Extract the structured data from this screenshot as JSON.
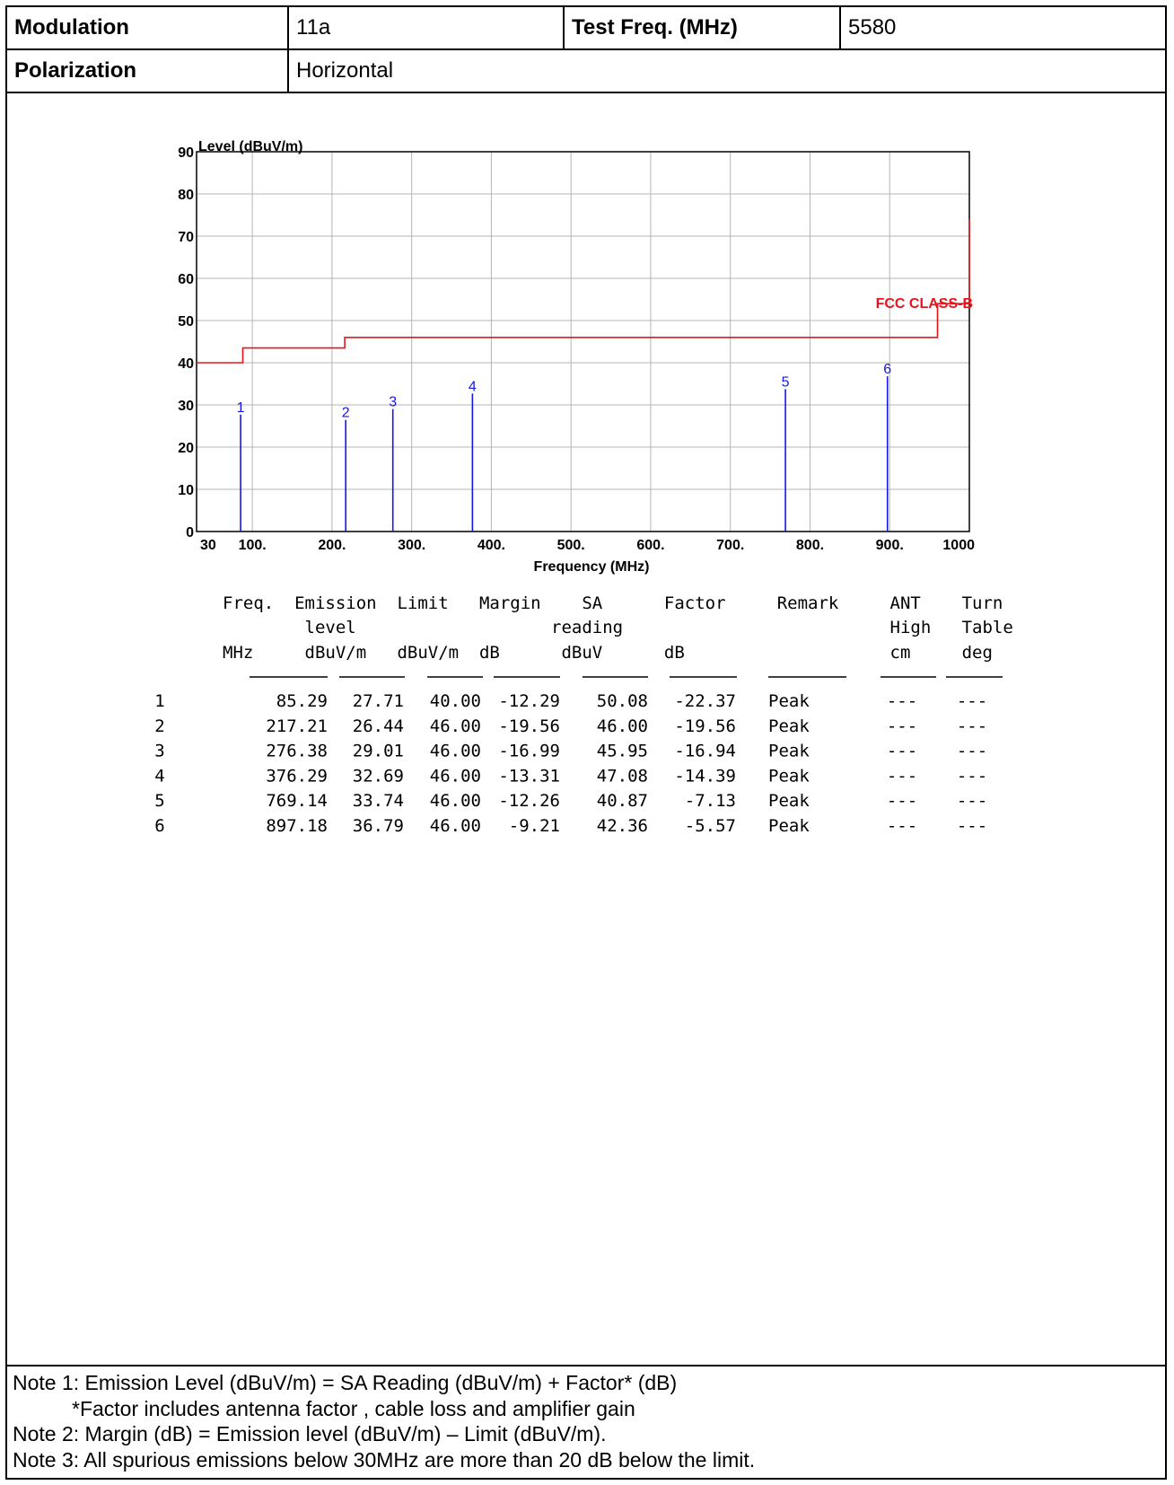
{
  "header": {
    "modulation_label": "Modulation",
    "modulation_value": "11a",
    "test_freq_label": "Test Freq. (MHz)",
    "test_freq_value": "5580",
    "polarization_label": "Polarization",
    "polarization_value": "Horizontal"
  },
  "chart_data": {
    "type": "line",
    "ylabel": "Level (dBuV/m)",
    "xlabel": "Frequency (MHz)",
    "xlim": [
      30,
      1000
    ],
    "ylim": [
      0,
      90
    ],
    "x_ticks": [
      {
        "value": 30,
        "label": "30"
      },
      {
        "value": 100,
        "label": "100."
      },
      {
        "value": 200,
        "label": "200."
      },
      {
        "value": 300,
        "label": "300."
      },
      {
        "value": 400,
        "label": "400."
      },
      {
        "value": 500,
        "label": "500."
      },
      {
        "value": 600,
        "label": "600."
      },
      {
        "value": 700,
        "label": "700."
      },
      {
        "value": 800,
        "label": "800."
      },
      {
        "value": 900,
        "label": "900."
      },
      {
        "value": 1000,
        "label": "1000"
      }
    ],
    "y_ticks": [
      0,
      10,
      20,
      30,
      40,
      50,
      60,
      70,
      80,
      90
    ],
    "grid": true,
    "limit_line": {
      "name": "FCC CLASS-B",
      "color": "#e8141c",
      "points": [
        [
          30,
          40
        ],
        [
          88,
          40
        ],
        [
          88,
          43.5
        ],
        [
          216,
          43.5
        ],
        [
          216,
          46
        ],
        [
          960,
          46
        ],
        [
          960,
          54
        ],
        [
          1000,
          54
        ],
        [
          1000,
          74
        ]
      ]
    },
    "markers": {
      "color": "#1515f0",
      "points": [
        {
          "label": "1",
          "x": 85.29,
          "y": 27.71
        },
        {
          "label": "2",
          "x": 217.21,
          "y": 26.44
        },
        {
          "label": "3",
          "x": 276.38,
          "y": 29.01
        },
        {
          "label": "4",
          "x": 376.29,
          "y": 32.69
        },
        {
          "label": "5",
          "x": 769.14,
          "y": 33.74
        },
        {
          "label": "6",
          "x": 897.18,
          "y": 36.79
        }
      ]
    }
  },
  "results": {
    "header_line1": "Freq.  Emission  Limit   Margin    SA      Factor     Remark     ANT    Turn",
    "header_line2": "        level                   reading                          High   Table",
    "header_line3": "MHz     dBuV/m   dBuV/m  dB      dBuV      dB                    cm     deg",
    "rows": [
      {
        "no": "1",
        "freq": "85.29",
        "level": "27.71",
        "limit": "40.00",
        "margin": "-12.29",
        "reading": "50.08",
        "factor": "-22.37",
        "remark": "Peak",
        "ant": "---",
        "turn": "---"
      },
      {
        "no": "2",
        "freq": "217.21",
        "level": "26.44",
        "limit": "46.00",
        "margin": "-19.56",
        "reading": "46.00",
        "factor": "-19.56",
        "remark": "Peak",
        "ant": "---",
        "turn": "---"
      },
      {
        "no": "3",
        "freq": "276.38",
        "level": "29.01",
        "limit": "46.00",
        "margin": "-16.99",
        "reading": "45.95",
        "factor": "-16.94",
        "remark": "Peak",
        "ant": "---",
        "turn": "---"
      },
      {
        "no": "4",
        "freq": "376.29",
        "level": "32.69",
        "limit": "46.00",
        "margin": "-13.31",
        "reading": "47.08",
        "factor": "-14.39",
        "remark": "Peak",
        "ant": "---",
        "turn": "---"
      },
      {
        "no": "5",
        "freq": "769.14",
        "level": "33.74",
        "limit": "46.00",
        "margin": "-12.26",
        "reading": "40.87",
        "factor": "-7.13",
        "remark": "Peak",
        "ant": "---",
        "turn": "---"
      },
      {
        "no": "6",
        "freq": "897.18",
        "level": "36.79",
        "limit": "46.00",
        "margin": "-9.21",
        "reading": "42.36",
        "factor": "-5.57",
        "remark": "Peak",
        "ant": "---",
        "turn": "---"
      }
    ]
  },
  "notes": {
    "note1": "Note 1: Emission Level (dBuV/m) = SA Reading (dBuV/m) + Factor* (dB)",
    "note1_sub": "*Factor includes antenna factor , cable loss and amplifier gain",
    "note2": "Note 2: Margin (dB) = Emission level (dBuV/m) – Limit (dBuV/m).",
    "note3": "Note 3: All spurious emissions below 30MHz are more than 20 dB below the limit."
  }
}
